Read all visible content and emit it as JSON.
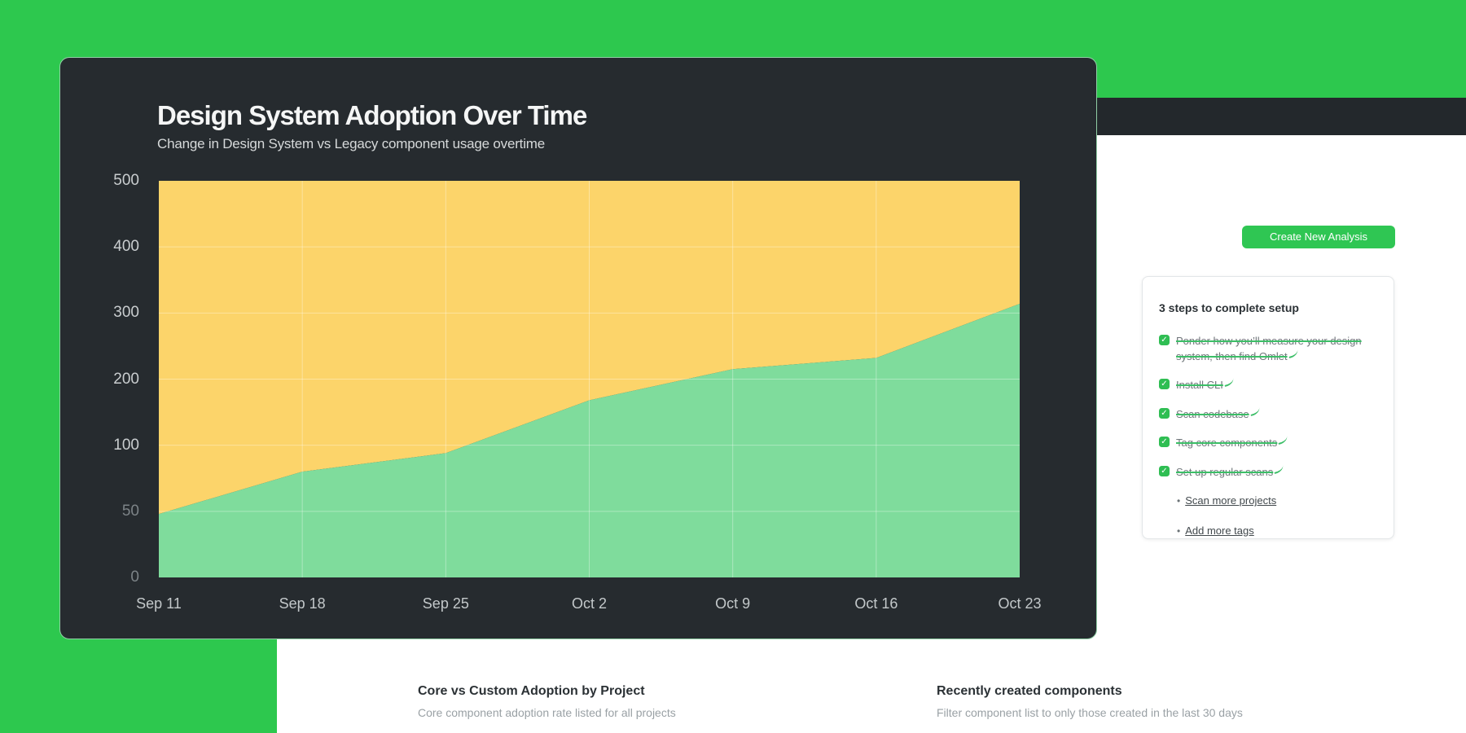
{
  "colors": {
    "background_green": "#2DC84E",
    "chart_card_dark": "#262B2F",
    "navbar_dark": "#23282C",
    "area_green": "#7FDC9C",
    "area_yellow": "#FCD46A",
    "accent_green": "#2FC653",
    "checkbox_green": "#2FBE53",
    "strikethrough_green": "#3CBE67"
  },
  "chart_card": {
    "title": "Design System Adoption Over Time",
    "subtitle": "Change in Design System vs Legacy component usage overtime"
  },
  "chart_data": {
    "type": "area",
    "stacked": true,
    "title": "Design System Adoption Over Time",
    "subtitle": "Change in Design System vs Legacy component usage overtime",
    "categories": [
      "Sep 11",
      "Sep 18",
      "Sep 25",
      "Oct 2",
      "Oct 9",
      "Oct 16",
      "Oct 23"
    ],
    "series": [
      {
        "name": "Design System",
        "color": "#7FDC9C",
        "values": [
          48,
          80,
          94,
          168,
          215,
          232,
          314
        ]
      },
      {
        "name": "Legacy",
        "color": "#FCD46A",
        "values": [
          452,
          420,
          406,
          332,
          285,
          268,
          186
        ]
      }
    ],
    "stack_total": 500,
    "y_ticks": [
      0,
      50,
      100,
      200,
      300,
      400,
      500
    ],
    "y_axis_note": "ticks evenly spaced (non-linear scale)",
    "ylim": [
      0,
      500
    ],
    "grid": true,
    "legend": "none"
  },
  "page": {
    "create_button_label": "Create New Analysis",
    "setup_card": {
      "title": "3 steps to complete setup",
      "completed_items": [
        "Ponder how you’ll measure your design system, then find Omlet",
        "Install CLI",
        "Scan codebase",
        "Tag core components",
        "Set up regular scans"
      ],
      "links": [
        "Scan more projects",
        "Add more tags"
      ]
    },
    "sections": [
      {
        "title": "Core vs Custom Adoption by Project",
        "subtitle": "Core component adoption rate listed for all projects"
      },
      {
        "title": "Recently created components",
        "subtitle": "Filter component list to only those created in the last 30 days"
      }
    ]
  },
  "icons": {
    "check": "✓",
    "bullet": "•"
  }
}
